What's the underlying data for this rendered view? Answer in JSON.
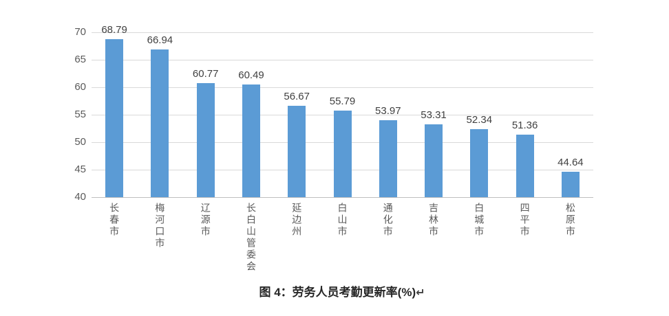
{
  "chart_data": {
    "type": "bar",
    "categories": [
      "长春市",
      "梅河口市",
      "辽源市",
      "长白山管委会",
      "延边州",
      "白山市",
      "通化市",
      "吉林市",
      "白城市",
      "四平市",
      "松原市"
    ],
    "values": [
      68.79,
      66.94,
      60.77,
      60.49,
      56.67,
      55.79,
      53.97,
      53.31,
      52.34,
      51.36,
      44.64
    ],
    "title": "图 4：劳务人员考勤更新率(%)",
    "xlabel": "",
    "ylabel": "",
    "ylim": [
      40,
      70
    ],
    "yticks": [
      40,
      45,
      50,
      55,
      60,
      65,
      70
    ],
    "grid": true,
    "legend": "none",
    "data_labels": true
  },
  "caption": {
    "text": "图 4：劳务人员考勤更新率(%)",
    "return_mark": "↵"
  },
  "colors": {
    "bar": "#5b9bd5",
    "gridline": "#d9d9d9",
    "axis_line": "#bfbfbf",
    "tick_label": "#595959",
    "data_label": "#404040",
    "caption": "#262626",
    "background": "#ffffff"
  }
}
